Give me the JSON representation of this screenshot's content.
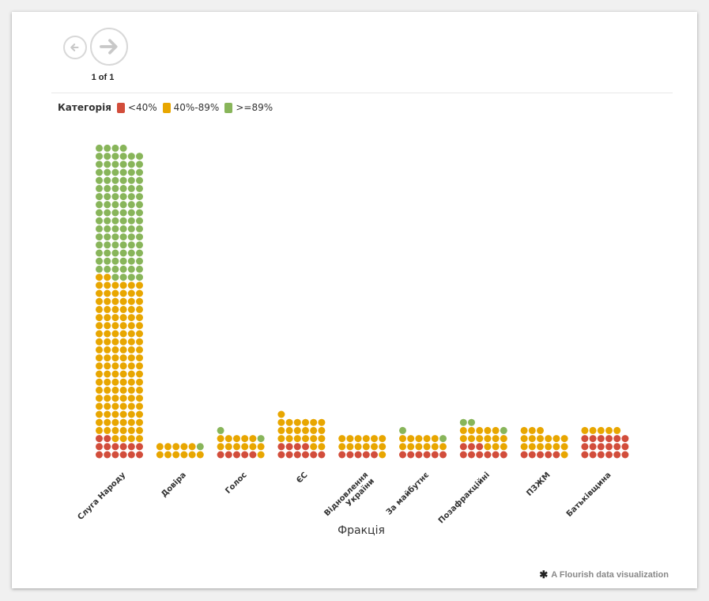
{
  "pager": {
    "text": "1 of 1"
  },
  "legend": {
    "title": "Категорія",
    "items": [
      {
        "label": "<40%",
        "color": "#d24d3b"
      },
      {
        "label": "40%-89%",
        "color": "#e8a600"
      },
      {
        "label": ">=89%",
        "color": "#88b55a"
      }
    ]
  },
  "credit": {
    "text": "A Flourish data visualization",
    "icon": "flourish-asterisk-icon"
  },
  "chart_data": {
    "type": "waffle-column",
    "xlabel": "Фракція",
    "unit_colors": {
      "low": "#d24d3b",
      "mid": "#e8a600",
      "high": "#88b55a"
    },
    "dots_per_row": 6,
    "categories": [
      "Слуга Народу",
      "Довіра",
      "Голос",
      "ЄС",
      "Відновлення України",
      "За майбутнє",
      "Позафракційні",
      "ПЗЖМ",
      "Батьківщина"
    ],
    "series": [
      {
        "name": "<40%",
        "values": [
          14,
          0,
          5,
          10,
          5,
          6,
          9,
          5,
          18
        ]
      },
      {
        "name": "40%-89%",
        "values": [
          120,
          11,
          12,
          21,
          13,
          11,
          14,
          16,
          5
        ]
      },
      {
        "name": ">=89%",
        "values": [
          98,
          1,
          2,
          0,
          0,
          2,
          3,
          0,
          0
        ]
      }
    ]
  }
}
